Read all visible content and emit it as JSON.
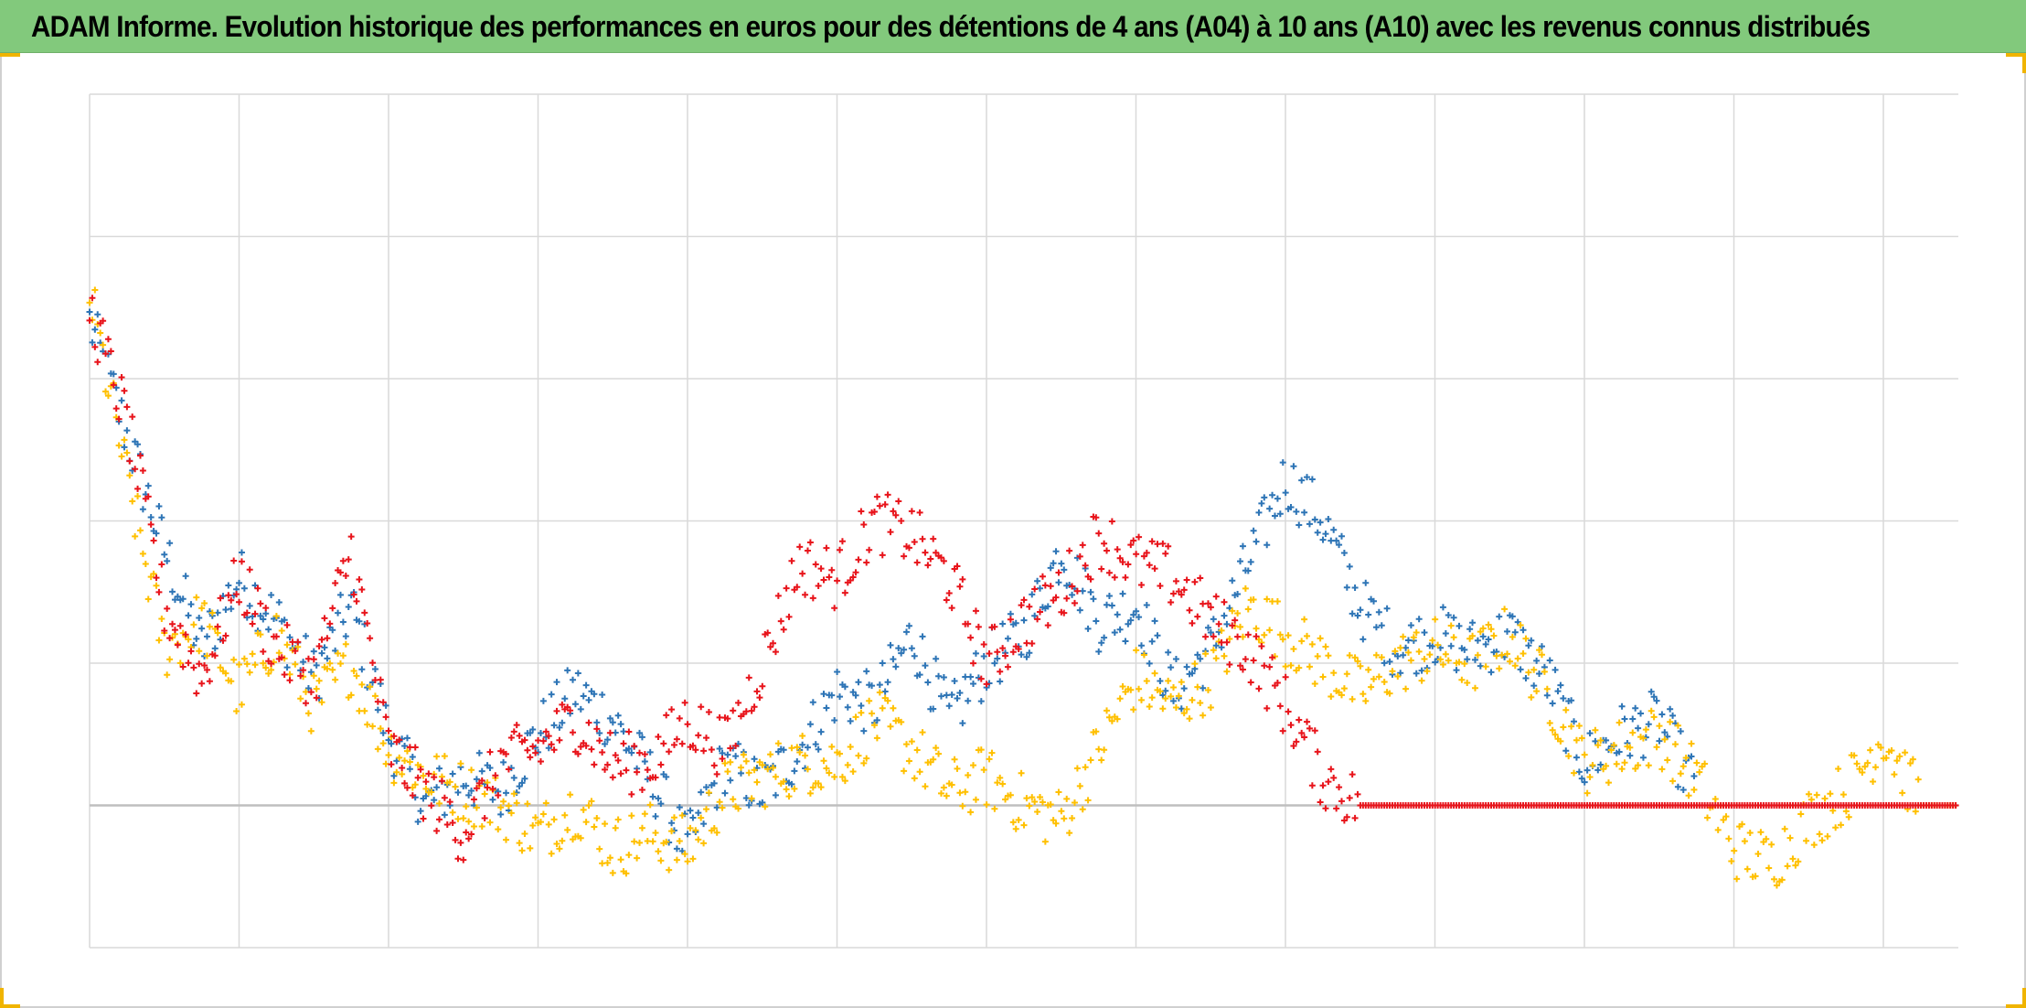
{
  "header": {
    "title": "ADAM Informe. Evolution historique des performances en euros pour des détentions de 4 ans (A04) à 10 ans (A10) avec les revenus connus distribués"
  },
  "colors": {
    "title_bar": "#82c97c",
    "corner_accent": "#f0b400",
    "gridline": "#d9d9d9",
    "zero_line": "#bfbfbf"
  },
  "chart_data": {
    "type": "scatter",
    "marker": "plus",
    "title": "ADAM Informe. Evolution historique des performances en euros pour des détentions de 4 ans (A04) à 10 ans (A10) avec les revenus connus distribués",
    "xlabel": "",
    "ylabel": "",
    "grid": true,
    "tick_labels_shown": false,
    "legend": "none",
    "xlim": [
      0,
      100
    ],
    "ylim": [
      -1,
      5
    ],
    "x_gridlines": 13,
    "y_gridlines": 6,
    "zero_line": 0,
    "note_values": "Axis tick labels are not printed; values estimated in relative units (zero line at 0, one gridline step = 1).",
    "series": [
      {
        "color": "#2e75b6",
        "x": [
          0,
          2,
          4,
          6,
          8,
          10,
          12,
          14,
          16,
          18,
          20,
          22,
          24,
          26,
          28,
          30,
          32,
          34,
          36,
          38,
          40,
          42,
          44,
          46,
          48,
          50,
          52,
          54,
          56,
          58,
          60,
          62,
          64,
          66,
          68,
          70,
          72,
          74,
          76,
          78,
          80,
          82,
          84,
          86,
          88,
          90,
          92,
          94,
          96,
          98,
          100
        ],
        "y": [
          3.4,
          2.6,
          1.8,
          1.1,
          1.6,
          1.3,
          0.9,
          1.4,
          0.5,
          0.0,
          0.2,
          0.1,
          0.5,
          0.8,
          0.6,
          0.2,
          -0.3,
          0.3,
          0.1,
          0.4,
          0.8,
          0.7,
          1.2,
          0.6,
          1.0,
          1.2,
          1.8,
          1.3,
          1.4,
          0.8,
          1.1,
          1.7,
          2.3,
          2.0,
          1.4,
          1.1,
          1.2,
          1.1,
          1.2,
          0.9,
          0.3,
          0.5,
          0.6,
          0.1,
          null,
          null,
          null,
          null,
          null,
          null,
          null
        ]
      },
      {
        "color": "#ffc000",
        "x": [
          0,
          2,
          4,
          6,
          8,
          10,
          12,
          14,
          16,
          18,
          20,
          22,
          24,
          26,
          28,
          30,
          32,
          34,
          36,
          38,
          40,
          42,
          44,
          46,
          48,
          50,
          52,
          54,
          56,
          58,
          60,
          62,
          64,
          66,
          68,
          70,
          72,
          74,
          76,
          78,
          80,
          82,
          84,
          86,
          88,
          90,
          92,
          94,
          96,
          98,
          100
        ],
        "y": [
          3.6,
          2.3,
          1.1,
          1.3,
          0.8,
          1.2,
          0.7,
          1.0,
          0.4,
          0.2,
          0.1,
          0.0,
          -0.2,
          0.0,
          -0.3,
          -0.2,
          -0.3,
          0.1,
          0.2,
          0.3,
          0.3,
          0.6,
          0.4,
          0.1,
          0.2,
          0.0,
          -0.1,
          0.4,
          0.9,
          0.7,
          0.9,
          1.4,
          1.2,
          1.0,
          0.8,
          1.0,
          1.1,
          1.0,
          1.2,
          0.8,
          0.3,
          0.4,
          0.5,
          0.2,
          -0.3,
          -0.4,
          -0.1,
          0.1,
          0.5,
          0.0,
          0.0
        ]
      },
      {
        "color": "#e8141b",
        "x": [
          0,
          2,
          4,
          6,
          8,
          10,
          12,
          14,
          16,
          18,
          20,
          22,
          24,
          26,
          28,
          30,
          32,
          34,
          36,
          38,
          40,
          42,
          44,
          46,
          48,
          50,
          52,
          54,
          56,
          58,
          60,
          62,
          64,
          66,
          68,
          70,
          72,
          74,
          76,
          78,
          80,
          82,
          84,
          86,
          88,
          90,
          92,
          94,
          96,
          98,
          100
        ],
        "y": [
          3.5,
          2.7,
          1.4,
          0.9,
          1.6,
          1.1,
          0.9,
          1.8,
          0.4,
          0.1,
          -0.2,
          0.3,
          0.4,
          0.6,
          0.3,
          0.3,
          0.6,
          0.4,
          1.0,
          1.7,
          1.6,
          2.0,
          1.9,
          1.6,
          1.0,
          1.3,
          1.5,
          1.9,
          1.7,
          1.6,
          1.3,
          1.1,
          0.7,
          0.2,
          0.0,
          0.0,
          0.0,
          0.0,
          0.0,
          0.0,
          0.0,
          0.0,
          0.0,
          0.0,
          0.0,
          0.0,
          0.0,
          0.0,
          0.0,
          0.0,
          0.0
        ]
      }
    ]
  }
}
